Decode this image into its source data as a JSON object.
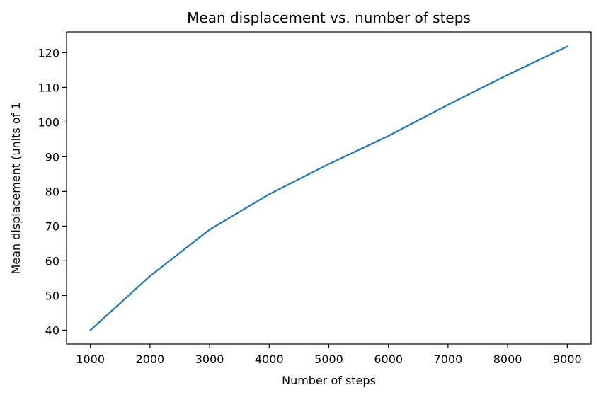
{
  "chart_data": {
    "type": "line",
    "title": "Mean displacement vs. number of steps",
    "xlabel": "Number of steps",
    "ylabel": "Mean displacement (units of 1",
    "x": [
      1000,
      2000,
      3000,
      4000,
      5000,
      6000,
      7000,
      8000,
      9000
    ],
    "series": [
      {
        "values": [
          40.0,
          55.6,
          69.0,
          79.2,
          87.9,
          96.0,
          105.0,
          113.6,
          121.8
        ],
        "color": "#1f77b4"
      }
    ],
    "xlim": [
      600,
      9400
    ],
    "ylim": [
      36,
      126
    ],
    "xticks": [
      1000,
      2000,
      3000,
      4000,
      5000,
      6000,
      7000,
      8000,
      9000
    ],
    "yticks": [
      40,
      50,
      60,
      70,
      80,
      90,
      100,
      110,
      120
    ],
    "grid": false,
    "legend": "none"
  }
}
